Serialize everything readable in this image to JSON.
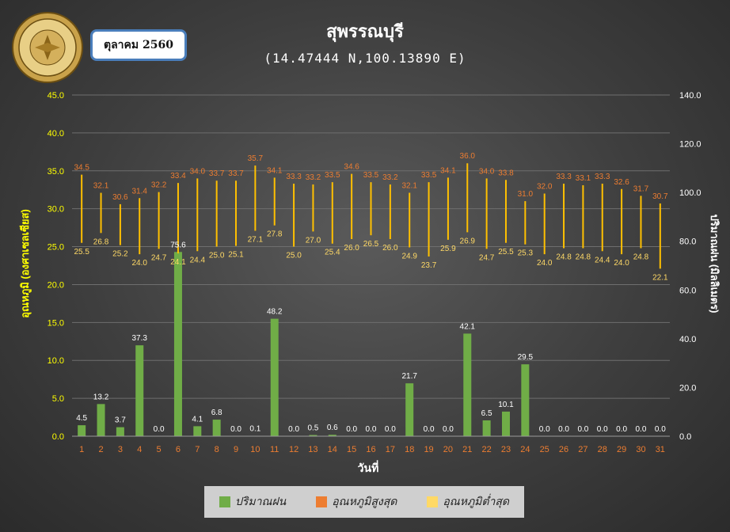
{
  "header": {
    "title": "สุพรรณบุรี",
    "coordinates": "(14.47444 N,100.13890 E)",
    "month": "ตุลาคม 2560",
    "logo_text": "กรมอุตุนิยมวิทยา METEOROLOGICAL DEPARTMENT"
  },
  "colors": {
    "rain": "#70ad47",
    "tmax": "#ed7d31",
    "tmin": "#ffd966",
    "range_line": "#ffc000",
    "left_axis_text": "#ffff00",
    "x_tick_text": "#ed7d31",
    "right_axis_text": "#ffffff"
  },
  "legend": {
    "rain": "ปริมาณฝน",
    "tmax": "อุณหภูมิสูงสุด",
    "tmin": "อุณหภูมิต่ำสุด"
  },
  "chart_data": {
    "type": "bar",
    "title": "สุพรรณบุรี",
    "subtitle": "(14.47444 N,100.13890 E)",
    "xlabel": "วันที่",
    "ylabel_left": "อุณหภูมิ (องศาเซลเซียส)",
    "ylabel_right": "ปริมาณฝน (มิลลิเมตร)",
    "ylim_left": [
      0,
      45
    ],
    "yticks_left": [
      "0.0",
      "5.0",
      "10.0",
      "15.0",
      "20.0",
      "25.0",
      "30.0",
      "35.0",
      "40.0",
      "45.0"
    ],
    "ylim_right": [
      0,
      140
    ],
    "yticks_right": [
      "0.0",
      "20.0",
      "40.0",
      "60.0",
      "80.0",
      "100.0",
      "120.0",
      "140.0"
    ],
    "grid": true,
    "legend_position": "bottom",
    "categories": [
      "1",
      "2",
      "3",
      "4",
      "5",
      "6",
      "7",
      "8",
      "9",
      "10",
      "11",
      "12",
      "13",
      "14",
      "15",
      "16",
      "17",
      "18",
      "19",
      "20",
      "21",
      "22",
      "23",
      "24",
      "25",
      "26",
      "27",
      "28",
      "29",
      "30",
      "31"
    ],
    "series": [
      {
        "name": "ปริมาณฝน",
        "kind": "bar",
        "axis": "right",
        "values": [
          4.5,
          13.2,
          3.7,
          37.3,
          0.0,
          75.6,
          4.1,
          6.8,
          0.0,
          0.1,
          48.2,
          0.0,
          0.5,
          0.6,
          0.0,
          0.0,
          0.0,
          21.7,
          0.0,
          0.0,
          42.1,
          6.5,
          10.1,
          29.5,
          0.0,
          0.0,
          0.0,
          0.0,
          0.0,
          0.0,
          0.0
        ]
      },
      {
        "name": "อุณหภูมิสูงสุด",
        "kind": "high",
        "axis": "left",
        "values": [
          34.5,
          32.1,
          30.6,
          31.4,
          32.2,
          33.4,
          34.0,
          33.7,
          33.7,
          35.7,
          34.1,
          33.3,
          33.2,
          33.5,
          34.6,
          33.5,
          33.2,
          32.1,
          33.5,
          34.1,
          36.0,
          34.0,
          33.8,
          31.0,
          32.0,
          33.3,
          33.1,
          33.3,
          32.6,
          31.7,
          30.7
        ]
      },
      {
        "name": "อุณหภูมิต่ำสุด",
        "kind": "low",
        "axis": "left",
        "values": [
          25.5,
          26.8,
          25.2,
          24.0,
          24.7,
          24.1,
          24.4,
          25.0,
          25.1,
          27.1,
          27.8,
          25.0,
          27.0,
          25.4,
          26.0,
          26.5,
          26.0,
          24.9,
          23.7,
          25.9,
          26.9,
          24.7,
          25.5,
          25.3,
          24.0,
          24.8,
          24.8,
          24.4,
          24.0,
          24.8,
          22.1
        ]
      }
    ]
  }
}
